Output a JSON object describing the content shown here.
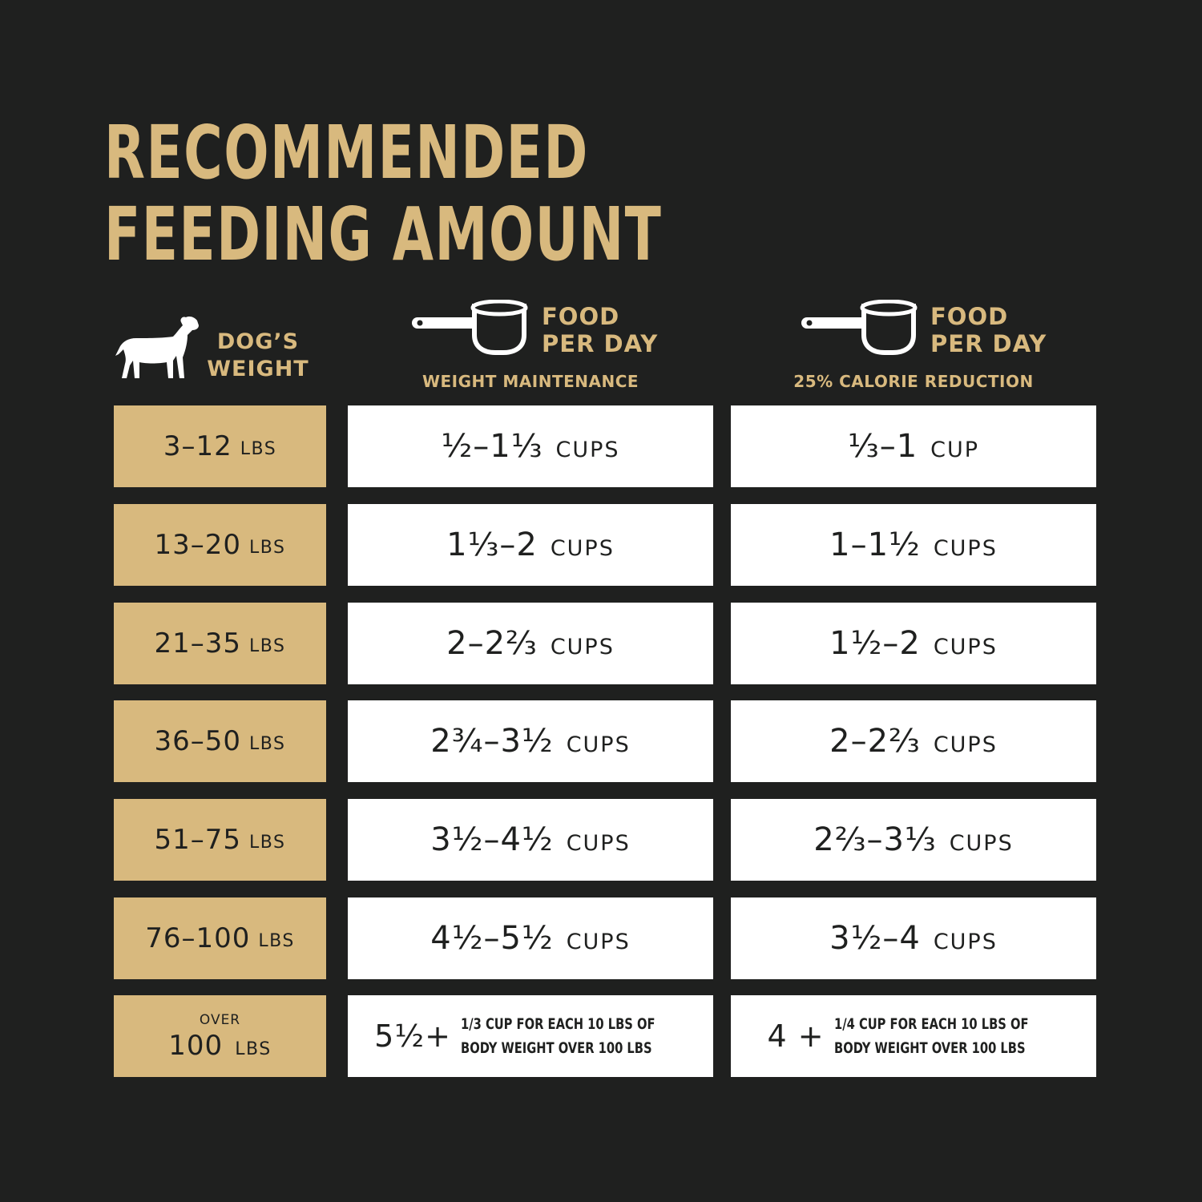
{
  "title": {
    "line1": "RECOMMENDED",
    "line2": "FEEDING AMOUNT"
  },
  "colors": {
    "background": "#1f201f",
    "gold": "#d8b97e",
    "cell": "#ffffff",
    "text": "#1f201f"
  },
  "icons": {
    "dog": "dog-silhouette-icon",
    "cup": "measuring-cup-icon"
  },
  "headers": {
    "weight": {
      "line1": "DOG’S",
      "line2": "WEIGHT"
    },
    "maintenance": {
      "line1": "FOOD",
      "line2": "PER DAY",
      "sub": "WEIGHT MAINTENANCE"
    },
    "reduction": {
      "line1": "FOOD",
      "line2": "PER DAY",
      "sub": "25% CALORIE REDUCTION"
    }
  },
  "rows": [
    {
      "weight": "3–12",
      "unit": "LBS",
      "maint": "½–1⅓",
      "maint_unit": "CUPS",
      "reduc": "⅓–1",
      "reduc_unit": "CUP"
    },
    {
      "weight": "13–20",
      "unit": "LBS",
      "maint": "1⅓–2",
      "maint_unit": "CUPS",
      "reduc": "1–1½",
      "reduc_unit": "CUPS"
    },
    {
      "weight": "21–35",
      "unit": "LBS",
      "maint": "2–2⅔",
      "maint_unit": "CUPS",
      "reduc": "1½–2",
      "reduc_unit": "CUPS"
    },
    {
      "weight": "36–50",
      "unit": "LBS",
      "maint": "2¾–3½",
      "maint_unit": "CUPS",
      "reduc": "2–2⅔",
      "reduc_unit": "CUPS"
    },
    {
      "weight": "51–75",
      "unit": "LBS",
      "maint": "3½–4½",
      "maint_unit": "CUPS",
      "reduc": "2⅔–3⅓",
      "reduc_unit": "CUPS"
    },
    {
      "weight": "76–100",
      "unit": "LBS",
      "maint": "4½–5½",
      "maint_unit": "CUPS",
      "reduc": "3½–4",
      "reduc_unit": "CUPS"
    }
  ],
  "last_row": {
    "over": "OVER",
    "weight": "100",
    "unit": "LBS",
    "maint": "5½+",
    "maint_note1": "1/3 CUP FOR EACH 10 LBS OF",
    "maint_note2": "BODY WEIGHT OVER 100 LBS",
    "reduc": "4 +",
    "reduc_note1": "1/4 CUP FOR EACH 10 LBS OF",
    "reduc_note2": "BODY WEIGHT OVER 100 LBS"
  }
}
